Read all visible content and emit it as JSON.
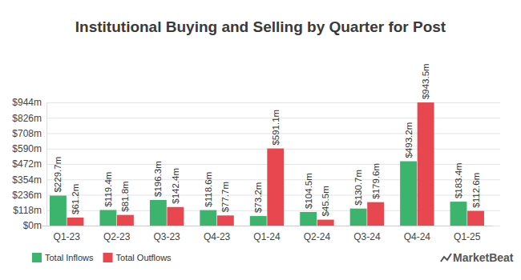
{
  "chart_data": {
    "type": "bar",
    "title": "Institutional Buying and Selling by Quarter for Post",
    "categories": [
      "Q1-23",
      "Q2-23",
      "Q3-23",
      "Q4-23",
      "Q1-24",
      "Q2-24",
      "Q3-24",
      "Q4-24",
      "Q1-25"
    ],
    "series": [
      {
        "name": "Total Inflows",
        "color": "#3cb46e",
        "values": [
          229.7,
          119.4,
          196.3,
          118.6,
          73.2,
          104.5,
          130.7,
          493.2,
          183.4
        ],
        "value_labels": [
          "$229.7m",
          "$119.4m",
          "$196.3m",
          "$118.6m",
          "$73.2m",
          "$104.5m",
          "$130.7m",
          "$493.2m",
          "$183.4m"
        ]
      },
      {
        "name": "Total Outflows",
        "color": "#e8474f",
        "values": [
          61.2,
          81.8,
          142.4,
          77.7,
          591.1,
          45.5,
          179.6,
          943.5,
          112.6
        ],
        "value_labels": [
          "$61.2m",
          "$81.8m",
          "$142.4m",
          "$77.7m",
          "$591.1m",
          "$45.5m",
          "$179.6m",
          "$943.5m",
          "$112.6m"
        ]
      }
    ],
    "ylim": [
      0,
      944
    ],
    "yticks": [
      {
        "value": 0,
        "label": "$0m"
      },
      {
        "value": 118,
        "label": "$118m"
      },
      {
        "value": 236,
        "label": "$236m"
      },
      {
        "value": 354,
        "label": "$354m"
      },
      {
        "value": 472,
        "label": "$472m"
      },
      {
        "value": 590,
        "label": "$590m"
      },
      {
        "value": 708,
        "label": "$708m"
      },
      {
        "value": 826,
        "label": "$826m"
      },
      {
        "value": 944,
        "label": "$944m"
      }
    ],
    "grid": true,
    "legend": "bottom-left",
    "data_labels": true,
    "annotations": [
      "MarketBeat"
    ]
  }
}
